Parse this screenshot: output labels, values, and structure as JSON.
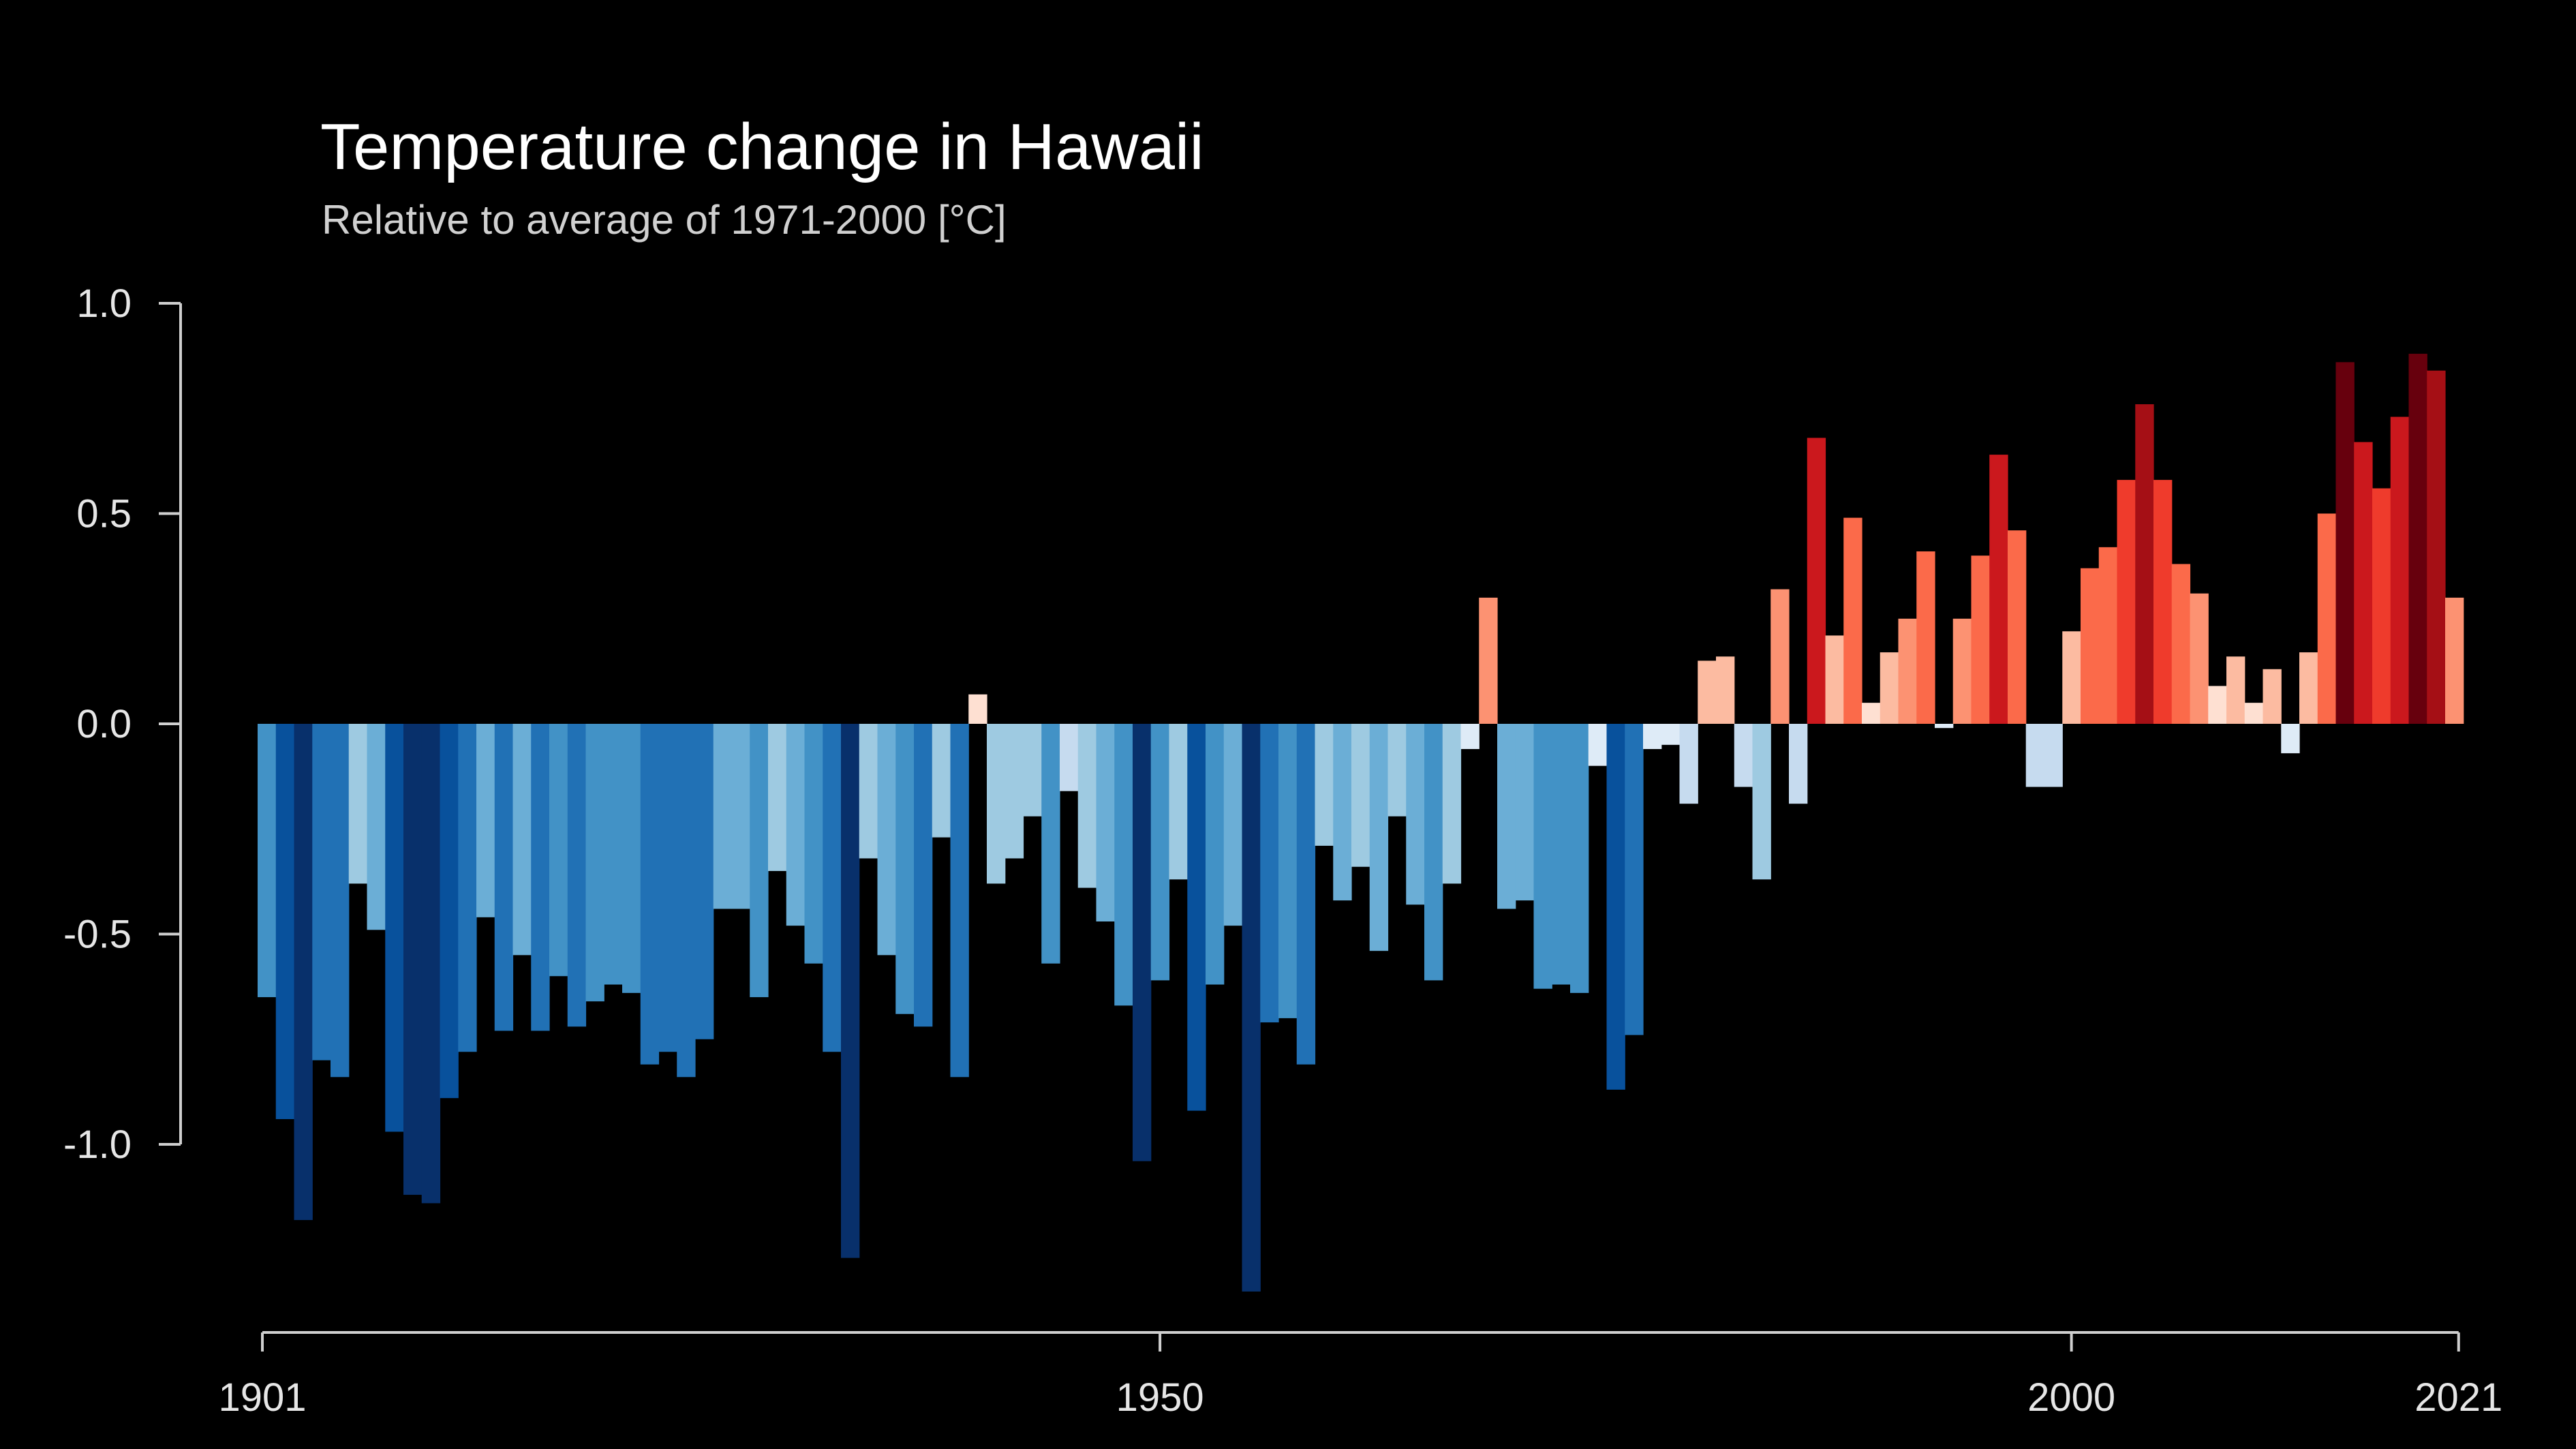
{
  "chart_data": {
    "type": "bar",
    "title": "Temperature change in Hawaii",
    "subtitle": "Relative to average of 1971-2000  [°C]",
    "xlabel": "",
    "ylabel": "",
    "x_start": 1901,
    "x_end": 2021,
    "x_ticks": [
      1901,
      1950,
      2000,
      2021
    ],
    "y_ticks": [
      1.0,
      0.5,
      0.0,
      -0.5,
      -1.0
    ],
    "y_tick_labels": [
      "1.0",
      "0.5",
      "0.0",
      "-0.5",
      "-1.0"
    ],
    "ylim": [
      -1.35,
      1.0
    ],
    "grid": false,
    "years": [
      1901,
      1902,
      1903,
      1904,
      1905,
      1906,
      1907,
      1908,
      1909,
      1910,
      1911,
      1912,
      1913,
      1914,
      1915,
      1916,
      1917,
      1918,
      1919,
      1920,
      1921,
      1922,
      1923,
      1924,
      1925,
      1926,
      1927,
      1928,
      1929,
      1930,
      1931,
      1932,
      1933,
      1934,
      1935,
      1936,
      1937,
      1938,
      1939,
      1940,
      1941,
      1942,
      1943,
      1944,
      1945,
      1946,
      1947,
      1948,
      1949,
      1950,
      1951,
      1952,
      1953,
      1954,
      1955,
      1956,
      1957,
      1958,
      1959,
      1960,
      1961,
      1962,
      1963,
      1964,
      1965,
      1966,
      1967,
      1968,
      1969,
      1970,
      1971,
      1972,
      1973,
      1974,
      1975,
      1976,
      1977,
      1978,
      1979,
      1980,
      1981,
      1982,
      1983,
      1984,
      1985,
      1986,
      1987,
      1988,
      1989,
      1990,
      1991,
      1992,
      1993,
      1994,
      1995,
      1996,
      1997,
      1998,
      1999,
      2000,
      2001,
      2002,
      2003,
      2004,
      2005,
      2006,
      2007,
      2008,
      2009,
      2010,
      2011,
      2012,
      2013,
      2014,
      2015,
      2016,
      2017,
      2018,
      2019,
      2020,
      2021
    ],
    "values": [
      -0.65,
      -0.94,
      -1.18,
      -0.8,
      -0.84,
      -0.38,
      -0.49,
      -0.97,
      -1.12,
      -1.14,
      -0.89,
      -0.78,
      -0.46,
      -0.73,
      -0.55,
      -0.73,
      -0.6,
      -0.72,
      -0.66,
      -0.62,
      -0.64,
      -0.81,
      -0.78,
      -0.84,
      -0.75,
      -0.44,
      -0.44,
      -0.65,
      -0.35,
      -0.48,
      -0.57,
      -0.78,
      -1.27,
      -0.32,
      -0.55,
      -0.69,
      -0.72,
      -0.27,
      -0.84,
      0.07,
      -0.38,
      -0.32,
      -0.22,
      -0.57,
      -0.16,
      -0.39,
      -0.47,
      -0.67,
      -1.04,
      -0.61,
      -0.37,
      -0.92,
      -0.62,
      -0.48,
      -1.35,
      -0.71,
      -0.7,
      -0.81,
      -0.29,
      -0.42,
      -0.34,
      -0.54,
      -0.22,
      -0.43,
      -0.61,
      -0.38,
      -0.06,
      0.3,
      -0.44,
      -0.42,
      -0.63,
      -0.62,
      -0.64,
      -0.1,
      -0.87,
      -0.74,
      -0.06,
      -0.05,
      -0.19,
      0.15,
      0.16,
      -0.15,
      -0.37,
      0.32,
      -0.19,
      0.68,
      0.21,
      0.49,
      0.05,
      0.17,
      0.25,
      0.41,
      -0.01,
      0.25,
      0.4,
      0.64,
      0.46,
      -0.15,
      -0.15,
      0.22,
      0.37,
      0.42,
      0.58,
      0.76,
      0.58,
      0.38,
      0.31,
      0.09,
      0.16,
      0.05,
      0.13,
      -0.07,
      0.17,
      0.5,
      0.86,
      0.67,
      0.56,
      0.73,
      0.88,
      0.84,
      0.3
    ]
  }
}
